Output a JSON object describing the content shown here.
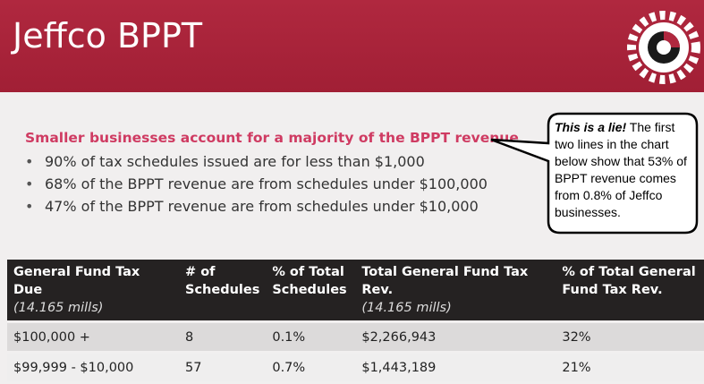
{
  "header": {
    "title": "Jeffco BPPT"
  },
  "subtitle": "Smaller businesses account for a majority of the BPPT revenue",
  "bullets": [
    "90% of tax schedules issued are for less than $1,000",
    "68% of the BPPT revenue are from schedules under $100,000",
    "47% of the BPPT revenue are from schedules under $10,000"
  ],
  "callout": {
    "emphasis": "This is a lie!",
    "text": "The first two lines in the chart below show that 53% of BPPT revenue comes from 0.8% of Jeffco businesses."
  },
  "table": {
    "columns": [
      {
        "label": "General Fund Tax Due",
        "note": "(14.165 mills)"
      },
      {
        "label": "# of Schedules"
      },
      {
        "label": "% of Total Schedules"
      },
      {
        "label": "Total General Fund Tax Rev.",
        "note": "(14.165 mills)"
      },
      {
        "label": "% of Total General Fund Tax Rev."
      }
    ],
    "rows": [
      [
        "$100,000 +",
        "8",
        "0.1%",
        "$2,266,943",
        "32%"
      ],
      [
        "$99,999 - $10,000",
        "57",
        "0.7%",
        "$1,443,189",
        "21%"
      ]
    ]
  }
}
